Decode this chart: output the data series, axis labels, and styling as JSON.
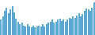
{
  "values": [
    35,
    42,
    55,
    62,
    50,
    58,
    65,
    52,
    38,
    30,
    25,
    28,
    22,
    20,
    25,
    20,
    18,
    22,
    18,
    20,
    22,
    20,
    25,
    20,
    25,
    28,
    30,
    35,
    28,
    30,
    35,
    38,
    32,
    35,
    30,
    35,
    40,
    38,
    42,
    40,
    45,
    50,
    42,
    48,
    55,
    60,
    58,
    55,
    62,
    75
  ],
  "bar_color": "#5BA8D4",
  "background_color": "#ffffff",
  "ylim": [
    0,
    80
  ]
}
